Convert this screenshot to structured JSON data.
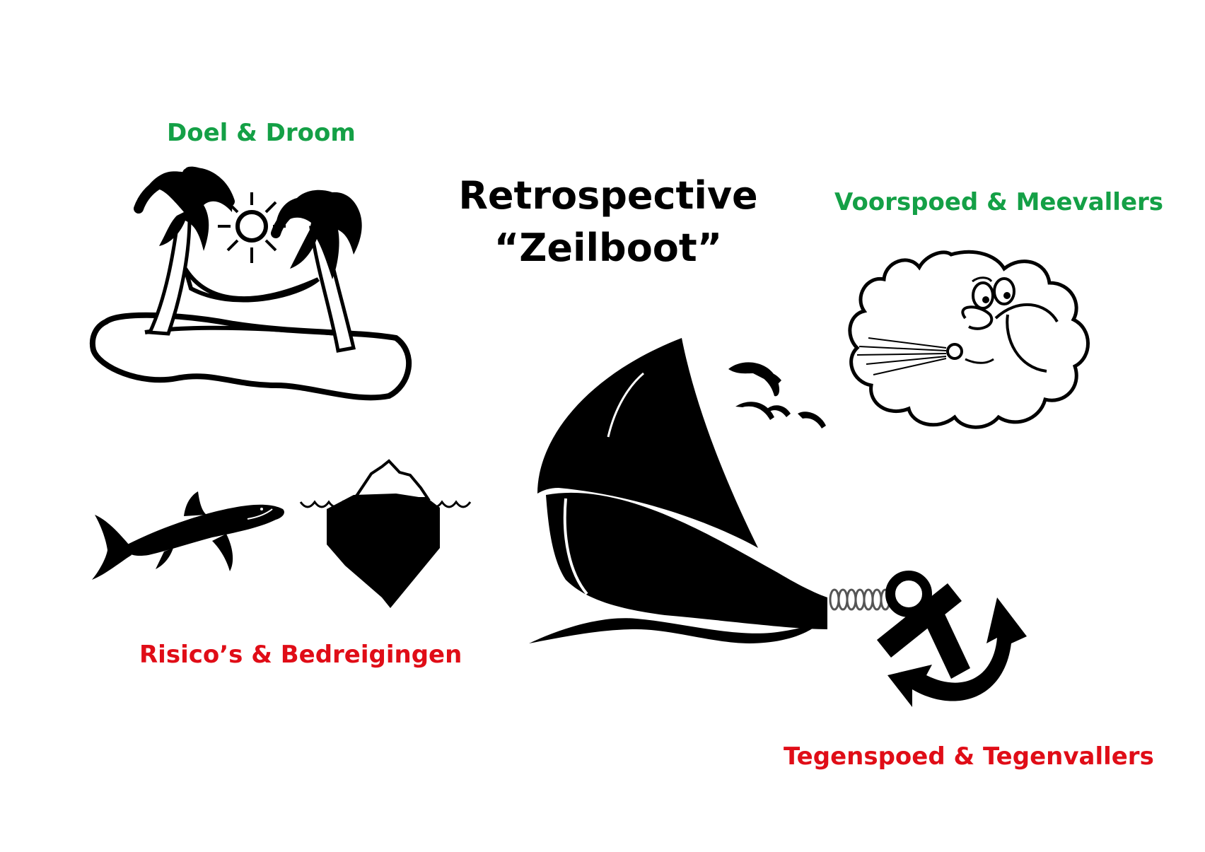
{
  "title": {
    "line1": "Retrospective",
    "line2": "“Zeilboot”"
  },
  "labels": {
    "goal": "Doel & Droom",
    "tailwind": "Voorspoed & Meevallers",
    "risks": "Risico’s & Bedreigingen",
    "anchor": "Tegenspoed & Tegenvallers"
  },
  "colors": {
    "positive": "#14a046",
    "negative": "#e00d17",
    "ink": "#000000"
  },
  "icons": [
    "island-icon",
    "sun-icon",
    "wind-cloud-icon",
    "birds-icon",
    "sailboat-icon",
    "anchor-icon",
    "shark-icon",
    "iceberg-icon"
  ]
}
